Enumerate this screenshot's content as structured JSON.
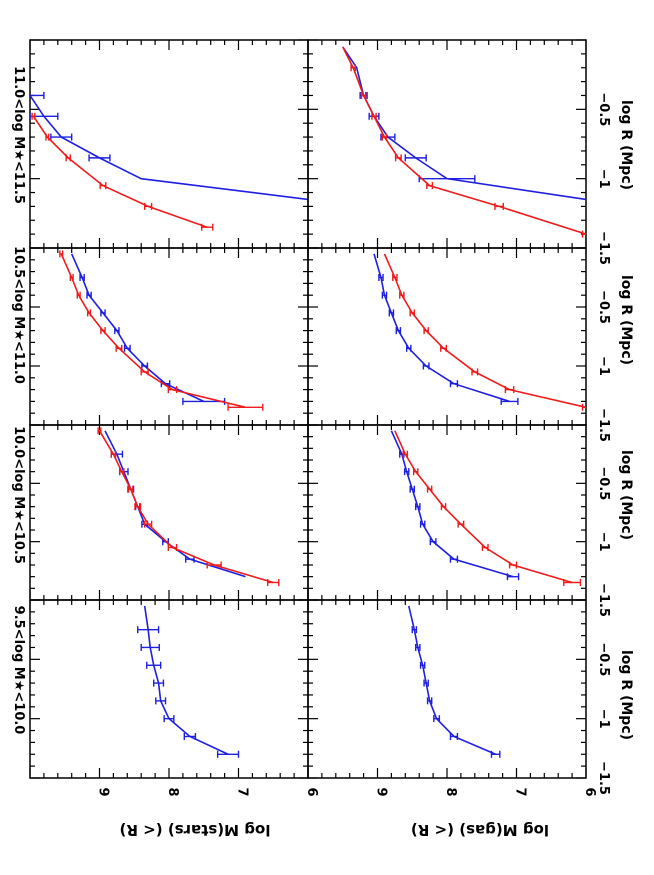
{
  "figure": {
    "y_label_top": "log M(stars) (< R)",
    "y_label_bottom": "log M(gas) (< R)",
    "x_label": "log R (Mpc)",
    "bin_labels": [
      "9.5<log M★<10.0",
      "10.0<log M★<10.5",
      "10.5<log M★<11.0",
      "11.0<log M★<11.5"
    ],
    "colors": {
      "blue": "#1f1fe0",
      "red": "#ee1c1c",
      "axis": "#000000"
    }
  },
  "chart_data": [
    {
      "type": "line",
      "row": "stars",
      "bin": "9.5<log M★<10.0",
      "xlim": [
        -1.5,
        0
      ],
      "ylim": [
        6,
        10
      ],
      "grid": false,
      "x_ticks": [
        -1.5,
        -1,
        -0.5
      ],
      "y_ticks": [
        6,
        7,
        8,
        9
      ],
      "series": [
        {
          "color": "blue",
          "x": [
            -1.3,
            -1.15,
            -1.0,
            -0.85,
            -0.7,
            -0.55,
            -0.4,
            -0.25,
            -0.05
          ],
          "y": [
            7.15,
            7.7,
            8.0,
            8.12,
            8.15,
            8.22,
            8.27,
            8.3,
            8.35
          ],
          "err": [
            0.15,
            0.08,
            0.07,
            0.07,
            0.07,
            0.1,
            0.13,
            0.15,
            0.0
          ]
        }
      ]
    },
    {
      "type": "line",
      "row": "stars",
      "bin": "10.0<log M★<10.5",
      "xlim": [
        -1.5,
        0
      ],
      "ylim": [
        6,
        10
      ],
      "grid": false,
      "x_ticks": [
        -1.5,
        -1,
        -0.5
      ],
      "y_ticks": [
        6,
        7,
        8,
        9
      ],
      "series": [
        {
          "color": "blue",
          "x": [
            -1.3,
            -1.15,
            -1.0,
            -0.85,
            -0.7,
            -0.55,
            -0.4,
            -0.25,
            -0.05
          ],
          "y": [
            6.9,
            7.7,
            8.05,
            8.35,
            8.45,
            8.55,
            8.65,
            8.75,
            8.92
          ],
          "err": [
            0.0,
            0.06,
            0.04,
            0.04,
            0.03,
            0.04,
            0.06,
            0.08,
            0.0
          ]
        },
        {
          "color": "red",
          "x": [
            -1.35,
            -1.2,
            -1.05,
            -0.85,
            -0.7,
            -0.55,
            -0.4,
            -0.25,
            -0.05
          ],
          "y": [
            6.5,
            7.35,
            7.95,
            8.3,
            8.45,
            8.55,
            8.68,
            8.8,
            9.0
          ],
          "err": [
            0.08,
            0.1,
            0.06,
            0.05,
            0.04,
            0.03,
            0.03,
            0.03,
            0.02
          ]
        }
      ]
    },
    {
      "type": "line",
      "row": "stars",
      "bin": "10.5<log M★<11.0",
      "xlim": [
        -1.5,
        0
      ],
      "ylim": [
        6,
        10
      ],
      "grid": false,
      "x_ticks": [
        -1.5,
        -1,
        -0.5
      ],
      "y_ticks": [
        6,
        7,
        8,
        9
      ],
      "series": [
        {
          "color": "blue",
          "x": [
            -1.3,
            -1.15,
            -1.0,
            -0.85,
            -0.7,
            -0.55,
            -0.4,
            -0.25,
            -0.05
          ],
          "y": [
            7.5,
            8.05,
            8.35,
            8.6,
            8.75,
            8.95,
            9.15,
            9.25,
            9.4
          ],
          "err": [
            0.3,
            0.06,
            0.04,
            0.04,
            0.03,
            0.03,
            0.03,
            0.03,
            0.0
          ]
        },
        {
          "color": "red",
          "x": [
            -1.35,
            -1.2,
            -1.05,
            -0.85,
            -0.7,
            -0.55,
            -0.4,
            -0.25,
            -0.05
          ],
          "y": [
            6.9,
            7.95,
            8.35,
            8.72,
            8.95,
            9.15,
            9.3,
            9.4,
            9.55
          ],
          "err": [
            0.25,
            0.06,
            0.05,
            0.04,
            0.03,
            0.02,
            0.02,
            0.02,
            0.02
          ]
        }
      ]
    },
    {
      "type": "line",
      "row": "stars",
      "bin": "11.0<log M★<11.5",
      "xlim": [
        -1.5,
        0
      ],
      "ylim": [
        6,
        10
      ],
      "grid": false,
      "x_ticks": [
        -1.5,
        -1,
        -0.5
      ],
      "y_ticks": [
        6,
        7,
        8,
        9
      ],
      "series": [
        {
          "color": "blue",
          "x": [
            -1.15,
            -1.0,
            -0.85,
            -0.7,
            -0.55,
            -0.4
          ],
          "y": [
            6.0,
            8.4,
            9.0,
            9.55,
            9.8,
            10.0
          ],
          "err": [
            0.0,
            0.0,
            0.15,
            0.15,
            0.2,
            0.2
          ]
        },
        {
          "color": "red",
          "x": [
            -1.35,
            -1.2,
            -1.05,
            -0.85,
            -0.7,
            -0.55
          ],
          "y": [
            7.45,
            8.3,
            8.95,
            9.45,
            9.75,
            9.95
          ],
          "err": [
            0.08,
            0.05,
            0.04,
            0.03,
            0.02,
            0.02
          ]
        }
      ]
    },
    {
      "type": "line",
      "row": "gas",
      "bin": "9.5<log M★<10.0",
      "xlim": [
        -1.5,
        0
      ],
      "ylim": [
        6,
        10
      ],
      "grid": false,
      "x_ticks": [
        -1.5,
        -1,
        -0.5
      ],
      "y_ticks": [
        6,
        7,
        8,
        9
      ],
      "series": [
        {
          "color": "blue",
          "x": [
            -1.3,
            -1.15,
            -1.0,
            -0.85,
            -0.7,
            -0.55,
            -0.4,
            -0.25,
            -0.05
          ],
          "y": [
            7.3,
            7.9,
            8.15,
            8.25,
            8.3,
            8.35,
            8.42,
            8.47,
            8.55
          ],
          "err": [
            0.06,
            0.05,
            0.04,
            0.03,
            0.03,
            0.03,
            0.03,
            0.03,
            0.0
          ]
        }
      ]
    },
    {
      "type": "line",
      "row": "gas",
      "bin": "10.0<log M★<10.5",
      "xlim": [
        -1.5,
        0
      ],
      "ylim": [
        6,
        10
      ],
      "grid": false,
      "x_ticks": [
        -1.5,
        -1,
        -0.5
      ],
      "y_ticks": [
        6,
        7,
        8,
        9
      ],
      "series": [
        {
          "color": "blue",
          "x": [
            -1.3,
            -1.15,
            -1.0,
            -0.85,
            -0.7,
            -0.55,
            -0.4,
            -0.25,
            -0.05
          ],
          "y": [
            7.05,
            7.9,
            8.2,
            8.35,
            8.42,
            8.5,
            8.58,
            8.65,
            8.8
          ],
          "err": [
            0.08,
            0.05,
            0.04,
            0.03,
            0.03,
            0.03,
            0.03,
            0.03,
            0.0
          ]
        },
        {
          "color": "red",
          "x": [
            -1.35,
            -1.2,
            -1.05,
            -0.85,
            -0.7,
            -0.55,
            -0.4,
            -0.25,
            -0.05
          ],
          "y": [
            6.2,
            7.05,
            7.45,
            7.8,
            8.05,
            8.25,
            8.45,
            8.6,
            8.75
          ],
          "err": [
            0.12,
            0.05,
            0.04,
            0.04,
            0.03,
            0.03,
            0.03,
            0.03,
            0.0
          ]
        }
      ]
    },
    {
      "type": "line",
      "row": "gas",
      "bin": "10.5<log M★<11.0",
      "xlim": [
        -1.5,
        0
      ],
      "ylim": [
        6,
        10
      ],
      "grid": false,
      "x_ticks": [
        -1.5,
        -1,
        -0.5
      ],
      "y_ticks": [
        6,
        7,
        8,
        9
      ],
      "series": [
        {
          "color": "blue",
          "x": [
            -1.3,
            -1.15,
            -1.0,
            -0.85,
            -0.7,
            -0.55,
            -0.4,
            -0.25,
            -0.05
          ],
          "y": [
            7.1,
            7.9,
            8.3,
            8.55,
            8.7,
            8.8,
            8.9,
            8.95,
            9.05
          ],
          "err": [
            0.12,
            0.05,
            0.04,
            0.03,
            0.03,
            0.03,
            0.03,
            0.03,
            0.0
          ]
        },
        {
          "color": "red",
          "x": [
            -1.35,
            -1.2,
            -1.05,
            -0.85,
            -0.7,
            -0.55,
            -0.4,
            -0.25,
            -0.05
          ],
          "y": [
            6.0,
            7.1,
            7.6,
            8.05,
            8.3,
            8.5,
            8.65,
            8.75,
            8.9
          ],
          "err": [
            0.05,
            0.06,
            0.04,
            0.04,
            0.03,
            0.03,
            0.03,
            0.03,
            0.0
          ]
        }
      ]
    },
    {
      "type": "line",
      "row": "gas",
      "bin": "11.0<log M★<11.5",
      "xlim": [
        -1.5,
        0
      ],
      "ylim": [
        6,
        10
      ],
      "grid": false,
      "x_ticks": [
        -1.5,
        -1,
        -0.5
      ],
      "y_ticks": [
        6,
        7,
        8,
        9
      ],
      "series": [
        {
          "color": "blue",
          "x": [
            -1.15,
            -1.0,
            -0.85,
            -0.7,
            -0.55,
            -0.4,
            -0.2,
            -0.05
          ],
          "y": [
            6.0,
            8.0,
            8.45,
            8.85,
            9.05,
            9.2,
            9.3,
            9.5
          ],
          "err": [
            0.0,
            0.4,
            0.15,
            0.1,
            0.07,
            0.05,
            0.0,
            0.0
          ]
        },
        {
          "color": "red",
          "x": [
            -1.4,
            -1.2,
            -1.05,
            -0.85,
            -0.7,
            -0.55,
            -0.4,
            -0.2,
            -0.05
          ],
          "y": [
            6.0,
            7.25,
            8.25,
            8.7,
            8.9,
            9.05,
            9.2,
            9.35,
            9.5
          ],
          "err": [
            0.05,
            0.06,
            0.04,
            0.04,
            0.03,
            0.03,
            0.03,
            0.03,
            0.0
          ]
        }
      ]
    }
  ]
}
